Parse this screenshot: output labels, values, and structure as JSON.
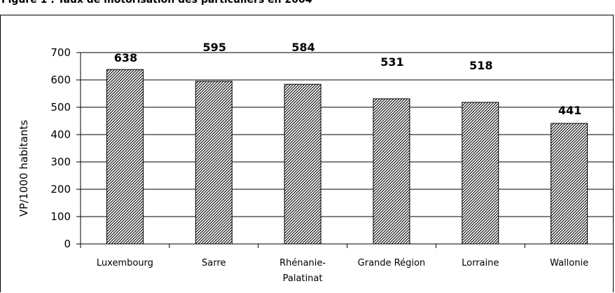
{
  "header": {
    "text": "Figure 1 : Taux de motorisation des particuliers en 2004"
  },
  "chart_data": {
    "type": "bar",
    "title": "",
    "xlabel": "",
    "ylabel": "VP/1000 habitants",
    "categories": [
      "Luxembourg",
      "Sarre",
      "Rhénanie-Palatinat",
      "Grande Région",
      "Lorraine",
      "Wallonie"
    ],
    "category_lines": [
      [
        "Luxembourg"
      ],
      [
        "Sarre"
      ],
      [
        "Rhénanie-",
        "Palatinat"
      ],
      [
        "Grande Région"
      ],
      [
        "Lorraine"
      ],
      [
        "Wallonie"
      ]
    ],
    "values": [
      638,
      595,
      584,
      531,
      518,
      441
    ],
    "data_labels": [
      "638",
      "595",
      "584",
      "531",
      "518",
      "441"
    ],
    "ylim": [
      0,
      700
    ],
    "yticks": [
      0,
      100,
      200,
      300,
      400,
      500,
      600,
      700
    ],
    "grid": true,
    "legend": "none",
    "bar_pattern": "diagonal-hatch",
    "colors": {
      "bar_fill": "#ffffff",
      "hatch": "#000000",
      "gridline": "#000000"
    }
  }
}
